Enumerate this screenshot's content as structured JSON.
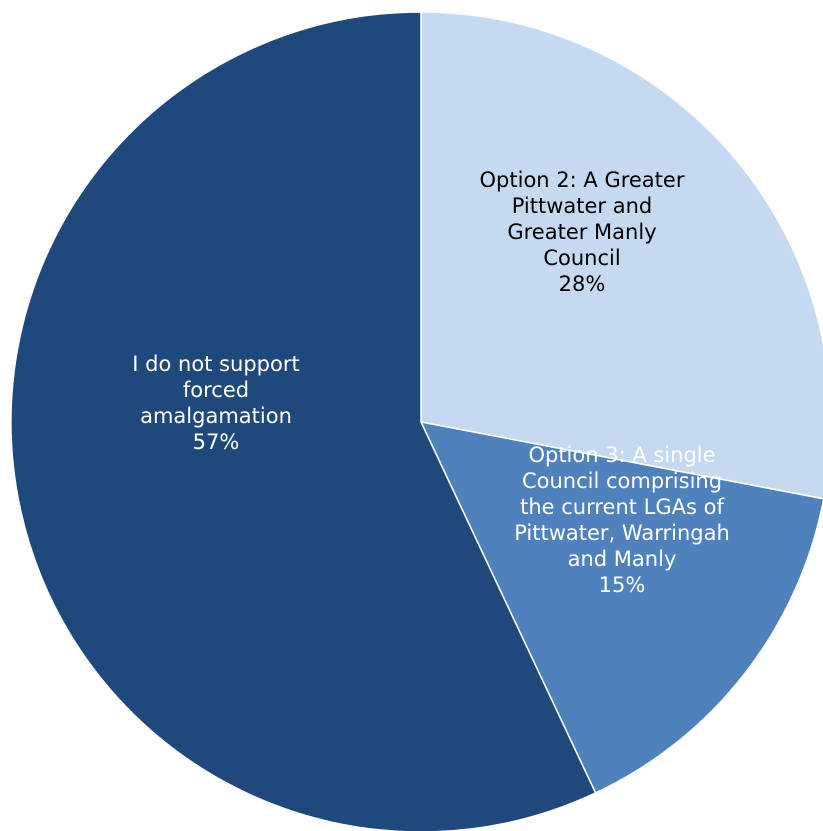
{
  "chart_data": {
    "type": "pie",
    "title": "",
    "slices": [
      {
        "label_lines": [
          "Option 2: A Greater",
          "Pittwater and",
          "Greater Manly",
          "Council"
        ],
        "percent_label": "28%",
        "value": 28,
        "color": "#C5D9F1",
        "label_color": "#000000"
      },
      {
        "label_lines": [
          "Option 3: A single",
          "Council comprising",
          "the current LGAs of",
          "Pittwater, Warringah",
          "and Manly"
        ],
        "percent_label": "15%",
        "value": 15,
        "color": "#4F81BD",
        "label_color": "#FFFFFF"
      },
      {
        "label_lines": [
          "I do not support",
          "forced",
          "amalgamation"
        ],
        "percent_label": "57%",
        "value": 57,
        "color": "#1F497D",
        "label_color": "#FFFFFF"
      }
    ],
    "start": "12 o'clock",
    "direction": "clockwise",
    "slice_border_color": "#FFFFFF",
    "legend": "none"
  }
}
